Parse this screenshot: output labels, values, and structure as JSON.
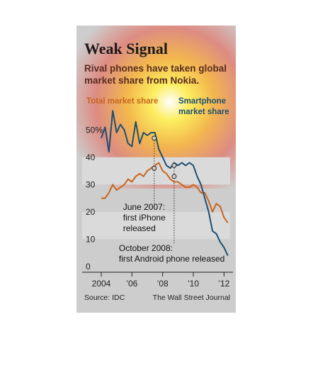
{
  "title": "Weak Signal",
  "subtitle": "Rival phones have taken global market share from Nokia.",
  "legend": {
    "total": "Total market share",
    "smartphone_line1": "Smartphone",
    "smartphone_line2": "market share"
  },
  "source": "Source: IDC",
  "credit": "The Wall Street Journal",
  "colors": {
    "total": "#c7661f",
    "smartphone": "#1d4f73",
    "background": "#cdcdcd"
  },
  "chart_data": {
    "type": "line",
    "xlim": [
      2004,
      2012.4
    ],
    "ylim": [
      0,
      55
    ],
    "x_ticks": [
      {
        "value": 2004,
        "label": "2004"
      },
      {
        "value": 2006,
        "label": "’06"
      },
      {
        "value": 2008,
        "label": "’08"
      },
      {
        "value": 2010,
        "label": "’10"
      },
      {
        "value": 2012,
        "label": "’12"
      }
    ],
    "y_ticks": [
      {
        "value": 0,
        "label": "0"
      },
      {
        "value": 10,
        "label": "10"
      },
      {
        "value": 20,
        "label": "20"
      },
      {
        "value": 30,
        "label": "30"
      },
      {
        "value": 40,
        "label": "40"
      },
      {
        "value": 50,
        "label": "50%"
      }
    ],
    "series": [
      {
        "name": "Total market share",
        "x": [
          2004.0,
          2004.25,
          2004.5,
          2004.75,
          2005.0,
          2005.25,
          2005.5,
          2005.75,
          2006.0,
          2006.25,
          2006.5,
          2006.75,
          2007.0,
          2007.25,
          2007.5,
          2007.75,
          2008.0,
          2008.25,
          2008.5,
          2008.75,
          2009.0,
          2009.25,
          2009.5,
          2009.75,
          2010.0,
          2010.25,
          2010.5,
          2010.75,
          2011.0,
          2011.25,
          2011.5,
          2011.75,
          2012.0,
          2012.25
        ],
        "y": [
          25,
          25,
          27,
          30,
          28,
          29,
          30,
          32,
          31,
          33,
          34,
          33,
          35,
          36,
          37,
          38,
          35,
          34,
          32,
          31,
          31,
          30,
          29,
          29,
          30,
          29,
          27,
          27,
          24,
          20,
          23,
          22,
          18,
          16
        ]
      },
      {
        "name": "Smartphone market share",
        "x": [
          2004.0,
          2004.25,
          2004.5,
          2004.75,
          2005.0,
          2005.25,
          2005.5,
          2005.75,
          2006.0,
          2006.25,
          2006.5,
          2006.75,
          2007.0,
          2007.25,
          2007.5,
          2007.75,
          2008.0,
          2008.25,
          2008.5,
          2008.75,
          2009.0,
          2009.25,
          2009.5,
          2009.75,
          2010.0,
          2010.25,
          2010.5,
          2010.75,
          2011.0,
          2011.25,
          2011.5,
          2011.75,
          2012.0,
          2012.25
        ],
        "y": [
          47,
          51,
          42,
          57,
          49,
          52,
          50,
          45,
          44,
          53,
          45,
          49,
          48,
          49,
          49,
          43,
          40,
          37,
          36,
          38,
          37,
          38,
          37,
          38,
          37,
          33,
          30,
          25,
          20,
          13,
          12,
          9,
          7,
          4
        ]
      }
    ],
    "annotations": [
      {
        "label_line1": "June 2007:",
        "label_line2": "first iPhone",
        "label_line3": "released",
        "x": 2007.45,
        "y_total": 36,
        "y_smart": 47
      },
      {
        "label_line1": "October 2008:",
        "label_line2": "first Android phone released",
        "x": 2008.75,
        "y_total": 33,
        "y_smart": 37
      }
    ],
    "grid": true,
    "bands": "alternating horizontal"
  }
}
